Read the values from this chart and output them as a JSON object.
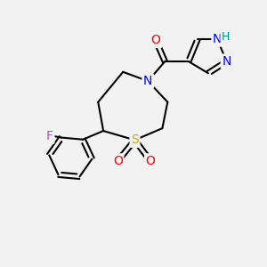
{
  "bg_color": "#f2f2f2",
  "bond_color": "#000000",
  "atom_colors": {
    "O": "#ff0000",
    "N": "#0000ff",
    "S": "#ccaa00",
    "F": "#cc44cc",
    "H": "#008888",
    "C": "#000000"
  },
  "font_size": 10,
  "bond_width": 1.5,
  "lw": 1.5
}
